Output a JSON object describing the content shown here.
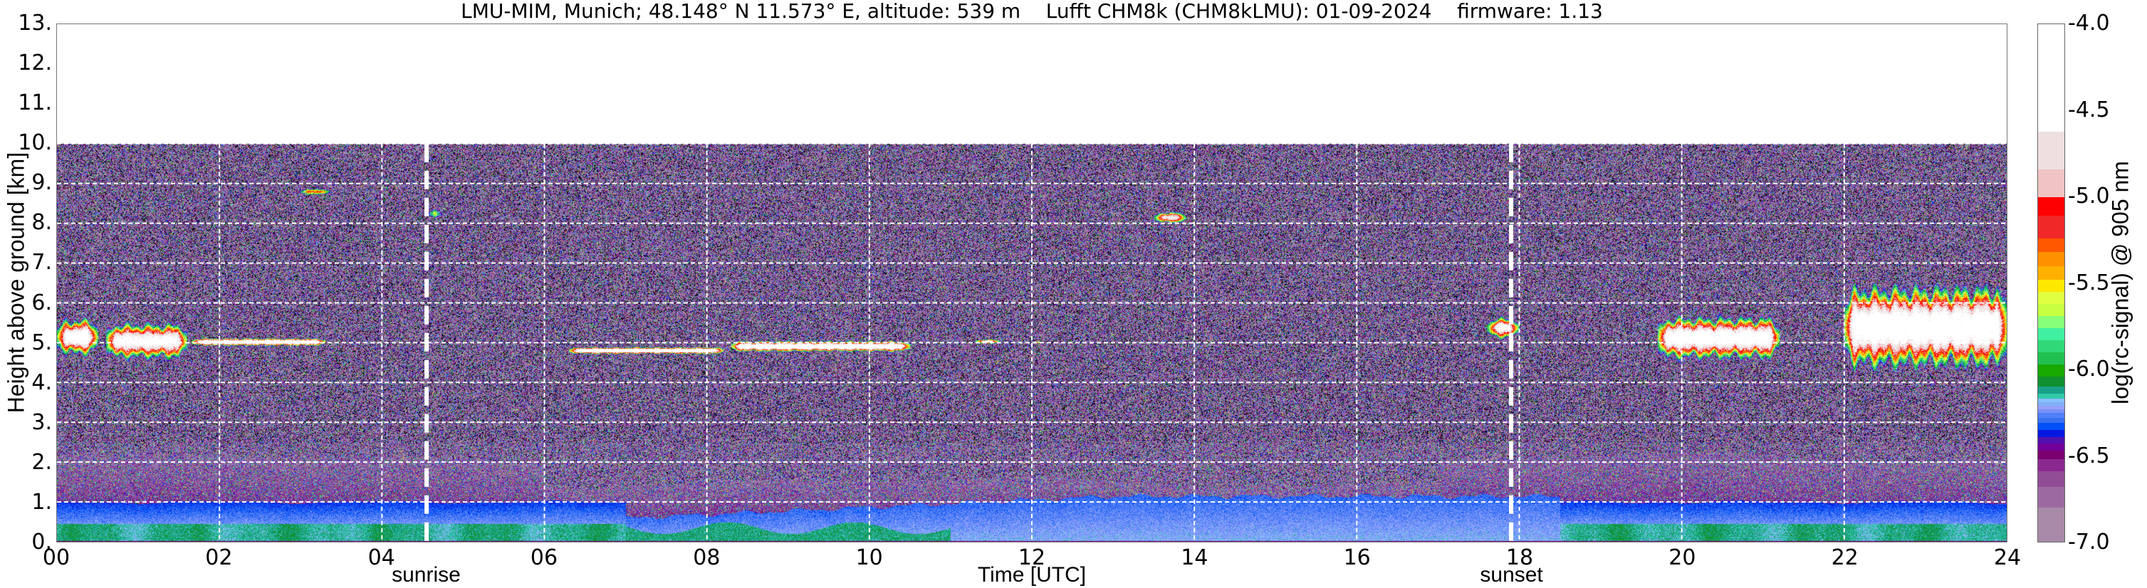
{
  "title": "LMU-MIM, Munich; 48.148° N 11.573° E, altitude: 539 m    Lufft CHM8k (CHM8kLMU): 01-09-2024    firmware: 1.13",
  "chart_data": {
    "type": "heatmap",
    "xlabel": "Time [UTC]",
    "ylabel": "Height above ground [km]",
    "xlim": [
      0,
      24
    ],
    "ylim": [
      0,
      13
    ],
    "data_top_km": 10,
    "grid": true,
    "x_ticks": [
      "00",
      "02",
      "04",
      "06",
      "08",
      "10",
      "12",
      "14",
      "16",
      "18",
      "20",
      "22",
      "24"
    ],
    "x_tick_values": [
      0,
      2,
      4,
      6,
      8,
      10,
      12,
      14,
      16,
      18,
      20,
      22,
      24
    ],
    "y_ticks": [
      "0.",
      "1.",
      "2.",
      "3.",
      "4.",
      "5.",
      "6.",
      "7.",
      "8.",
      "9.",
      "10.",
      "11.",
      "12.",
      "13."
    ],
    "y_tick_values": [
      0,
      1,
      2,
      3,
      4,
      5,
      6,
      7,
      8,
      9,
      10,
      11,
      12,
      13
    ],
    "annotations": [
      {
        "label": "sunrise",
        "time": 4.55
      },
      {
        "label": "sunset",
        "time": 17.9
      }
    ],
    "colorbar": {
      "label": "log(rc-signal) @ 905 nm",
      "range": [
        -7.0,
        -4.0
      ],
      "ticks": [
        "-7.0",
        "-6.5",
        "-6.0",
        "-5.5",
        "-5.0",
        "-4.5",
        "-4.0"
      ],
      "tick_values": [
        -7.0,
        -6.5,
        -6.0,
        -5.5,
        -5.0,
        -4.5,
        -4.0
      ],
      "bands": [
        {
          "from": -7.0,
          "to": -6.8,
          "color": "#a88aa8"
        },
        {
          "from": -6.8,
          "to": -6.68,
          "color": "#9c6aa0"
        },
        {
          "from": -6.68,
          "to": -6.59,
          "color": "#904c94"
        },
        {
          "from": -6.59,
          "to": -6.52,
          "color": "#8a2890"
        },
        {
          "from": -6.52,
          "to": -6.47,
          "color": "#7a0070"
        },
        {
          "from": -6.47,
          "to": -6.43,
          "color": "#720098"
        },
        {
          "from": -6.43,
          "to": -6.39,
          "color": "#5010b0"
        },
        {
          "from": -6.39,
          "to": -6.35,
          "color": "#0018e0"
        },
        {
          "from": -6.35,
          "to": -6.31,
          "color": "#0050f8"
        },
        {
          "from": -6.31,
          "to": -6.28,
          "color": "#3a70f0"
        },
        {
          "from": -6.28,
          "to": -6.25,
          "color": "#5080f8"
        },
        {
          "from": -6.25,
          "to": -6.23,
          "color": "#7890f8"
        },
        {
          "from": -6.23,
          "to": -6.21,
          "color": "#98a0f8"
        },
        {
          "from": -6.21,
          "to": -6.19,
          "color": "#80b0f8"
        },
        {
          "from": -6.19,
          "to": -6.17,
          "color": "#88c0ff"
        },
        {
          "from": -6.17,
          "to": -6.14,
          "color": "#30c8a8"
        },
        {
          "from": -6.14,
          "to": -6.1,
          "color": "#18a088"
        },
        {
          "from": -6.1,
          "to": -6.04,
          "color": "#109030"
        },
        {
          "from": -6.04,
          "to": -5.97,
          "color": "#18a800"
        },
        {
          "from": -5.97,
          "to": -5.9,
          "color": "#20c050"
        },
        {
          "from": -5.9,
          "to": -5.83,
          "color": "#30d878"
        },
        {
          "from": -5.83,
          "to": -5.76,
          "color": "#40f0a0"
        },
        {
          "from": -5.76,
          "to": -5.69,
          "color": "#88ff78"
        },
        {
          "from": -5.69,
          "to": -5.62,
          "color": "#c8ff40"
        },
        {
          "from": -5.62,
          "to": -5.55,
          "color": "#e0ff40"
        },
        {
          "from": -5.55,
          "to": -5.48,
          "color": "#ffe800"
        },
        {
          "from": -5.48,
          "to": -5.4,
          "color": "#ffb000"
        },
        {
          "from": -5.4,
          "to": -5.32,
          "color": "#ff9000"
        },
        {
          "from": -5.32,
          "to": -5.24,
          "color": "#ff5800"
        },
        {
          "from": -5.24,
          "to": -5.11,
          "color": "#f02828"
        },
        {
          "from": -5.11,
          "to": -5.0,
          "color": "#ff0000"
        },
        {
          "from": -5.0,
          "to": -4.84,
          "color": "#f0c4c4"
        },
        {
          "from": -4.84,
          "to": -4.62,
          "color": "#eee0e0"
        },
        {
          "from": -4.62,
          "to": -4.0,
          "color": "#ffffff"
        }
      ]
    },
    "cloud_layers": [
      {
        "t0": 0.0,
        "t1": 0.5,
        "base": 4.7,
        "top": 5.6,
        "peak": -4.3
      },
      {
        "t0": 0.6,
        "t1": 1.6,
        "base": 4.6,
        "top": 5.5,
        "peak": -4.4
      },
      {
        "t0": 1.65,
        "t1": 3.3,
        "base": 4.93,
        "top": 5.12,
        "peak": -4.2
      },
      {
        "t0": 2.95,
        "t1": 3.4,
        "base": 8.7,
        "top": 8.9,
        "peak": -5.3
      },
      {
        "t0": 4.55,
        "t1": 4.75,
        "base": 8.1,
        "top": 8.4,
        "peak": -5.2
      },
      {
        "t0": 6.3,
        "t1": 8.2,
        "base": 4.72,
        "top": 4.9,
        "peak": -4.2
      },
      {
        "t0": 8.3,
        "t1": 10.5,
        "base": 4.78,
        "top": 5.05,
        "peak": -4.2
      },
      {
        "t0": 11.3,
        "t1": 11.6,
        "base": 4.98,
        "top": 5.1,
        "peak": -4.4
      },
      {
        "t0": 12.0,
        "t1": 12.12,
        "base": 4.98,
        "top": 5.05,
        "peak": -4.5
      },
      {
        "t0": 13.5,
        "t1": 13.9,
        "base": 8.0,
        "top": 8.3,
        "peak": -4.6
      },
      {
        "t0": 17.6,
        "t1": 18.0,
        "base": 5.1,
        "top": 5.65,
        "peak": -4.5
      },
      {
        "t0": 19.7,
        "t1": 21.2,
        "base": 4.6,
        "top": 5.65,
        "peak": -4.3
      },
      {
        "t0": 22.0,
        "t1": 24.0,
        "base": 4.4,
        "top": 6.4,
        "peak": -4.2
      }
    ],
    "colors": {
      "no_signal": "#000000",
      "grid": "#ffffff",
      "annotation_line": "#ffffff"
    }
  }
}
